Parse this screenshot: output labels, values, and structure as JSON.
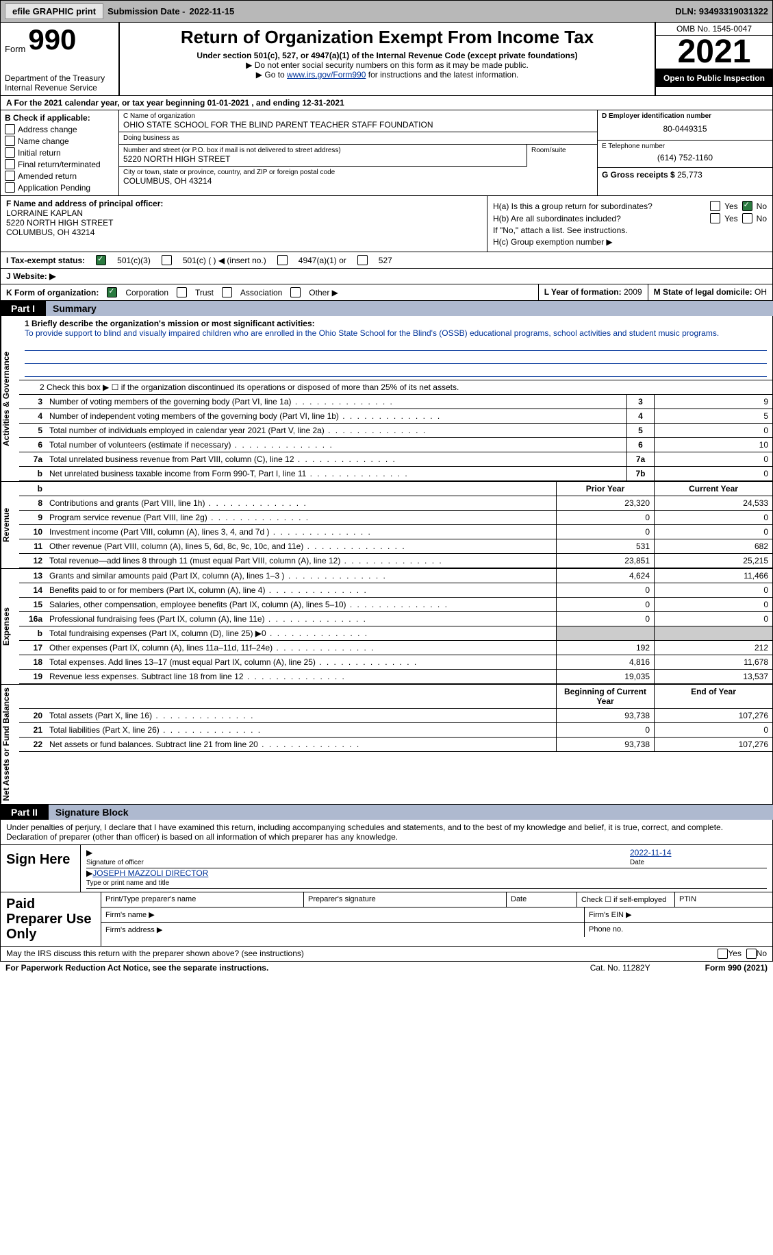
{
  "topbar": {
    "efile_btn": "efile GRAPHIC print",
    "sub_date_label": "Submission Date - ",
    "sub_date": "2022-11-15",
    "dln_label": "DLN: ",
    "dln": "93493319031322"
  },
  "header": {
    "form_word": "Form",
    "form_num": "990",
    "dept": "Department of the Treasury\nInternal Revenue Service",
    "title": "Return of Organization Exempt From Income Tax",
    "sub1": "Under section 501(c), 527, or 4947(a)(1) of the Internal Revenue Code (except private foundations)",
    "sub2": "▶ Do not enter social security numbers on this form as it may be made public.",
    "sub3_pre": "▶ Go to ",
    "sub3_link": "www.irs.gov/Form990",
    "sub3_post": " for instructions and the latest information.",
    "omb": "OMB No. 1545-0047",
    "year": "2021",
    "inspect": "Open to Public Inspection"
  },
  "sectA": "A For the 2021 calendar year, or tax year beginning 01-01-2021   , and ending 12-31-2021",
  "colB": {
    "label": "B Check if applicable:",
    "opts": [
      "Address change",
      "Name change",
      "Initial return",
      "Final return/terminated",
      "Amended return",
      "Application Pending"
    ]
  },
  "colC": {
    "name_lbl": "C Name of organization",
    "name": "OHIO STATE SCHOOL FOR THE BLIND PARENT TEACHER STAFF FOUNDATION",
    "dba_lbl": "Doing business as",
    "dba": "",
    "addr_lbl": "Number and street (or P.O. box if mail is not delivered to street address)",
    "addr": "5220 NORTH HIGH STREET",
    "room_lbl": "Room/suite",
    "city_lbl": "City or town, state or province, country, and ZIP or foreign postal code",
    "city": "COLUMBUS, OH  43214"
  },
  "colD": {
    "ein_lbl": "D Employer identification number",
    "ein": "80-0449315",
    "phone_lbl": "E Telephone number",
    "phone": "(614) 752-1160",
    "gross_lbl": "G Gross receipts $ ",
    "gross": "25,773"
  },
  "officer": {
    "lbl": "F Name and address of principal officer:",
    "name": "LORRAINE KAPLAN",
    "addr": "5220 NORTH HIGH STREET",
    "city": "COLUMBUS, OH  43214"
  },
  "hsection": {
    "ha": "H(a)  Is this a group return for subordinates?",
    "hb": "H(b)  Are all subordinates included?",
    "hb_note": "If \"No,\" attach a list. See instructions.",
    "hc": "H(c)  Group exemption number ▶"
  },
  "status": {
    "lbl": "I   Tax-exempt status:",
    "o1": "501(c)(3)",
    "o2": "501(c) (  ) ◀ (insert no.)",
    "o3": "4947(a)(1) or",
    "o4": "527"
  },
  "website": {
    "lbl": "J   Website: ▶"
  },
  "korg": {
    "lbl": "K Form of organization:",
    "corp": "Corporation",
    "trust": "Trust",
    "assoc": "Association",
    "other": "Other ▶",
    "year_lbl": "L Year of formation: ",
    "year": "2009",
    "state_lbl": "M State of legal domicile: ",
    "state": "OH"
  },
  "part1": {
    "num": "Part I",
    "title": "Summary"
  },
  "vtabs": {
    "activities": "Activities & Governance",
    "revenue": "Revenue",
    "expenses": "Expenses",
    "netassets": "Net Assets or Fund Balances"
  },
  "mission": {
    "lbl": "1   Briefly describe the organization's mission or most significant activities:",
    "text": "To provide support to blind and visually impaired children who are enrolled in the Ohio State School for the Blind's (OSSB) educational programs, school activities and student music programs."
  },
  "line2": "2   Check this box ▶ ☐  if the organization discontinued its operations or disposed of more than 25% of its net assets.",
  "rows_gov": [
    {
      "n": "3",
      "d": "Number of voting members of the governing body (Part VI, line 1a)",
      "box": "3",
      "v": "9"
    },
    {
      "n": "4",
      "d": "Number of independent voting members of the governing body (Part VI, line 1b)",
      "box": "4",
      "v": "5"
    },
    {
      "n": "5",
      "d": "Total number of individuals employed in calendar year 2021 (Part V, line 2a)",
      "box": "5",
      "v": "0"
    },
    {
      "n": "6",
      "d": "Total number of volunteers (estimate if necessary)",
      "box": "6",
      "v": "10"
    },
    {
      "n": "7a",
      "d": "Total unrelated business revenue from Part VIII, column (C), line 12",
      "box": "7a",
      "v": "0"
    },
    {
      "n": "b",
      "d": "Net unrelated business taxable income from Form 990-T, Part I, line 11",
      "box": "7b",
      "v": "0"
    }
  ],
  "hdr_rev": {
    "py": "Prior Year",
    "cy": "Current Year"
  },
  "rows_rev": [
    {
      "n": "8",
      "d": "Contributions and grants (Part VIII, line 1h)",
      "py": "23,320",
      "cy": "24,533"
    },
    {
      "n": "9",
      "d": "Program service revenue (Part VIII, line 2g)",
      "py": "0",
      "cy": "0"
    },
    {
      "n": "10",
      "d": "Investment income (Part VIII, column (A), lines 3, 4, and 7d )",
      "py": "0",
      "cy": "0"
    },
    {
      "n": "11",
      "d": "Other revenue (Part VIII, column (A), lines 5, 6d, 8c, 9c, 10c, and 11e)",
      "py": "531",
      "cy": "682"
    },
    {
      "n": "12",
      "d": "Total revenue—add lines 8 through 11 (must equal Part VIII, column (A), line 12)",
      "py": "23,851",
      "cy": "25,215"
    }
  ],
  "rows_exp": [
    {
      "n": "13",
      "d": "Grants and similar amounts paid (Part IX, column (A), lines 1–3 )",
      "py": "4,624",
      "cy": "11,466"
    },
    {
      "n": "14",
      "d": "Benefits paid to or for members (Part IX, column (A), line 4)",
      "py": "0",
      "cy": "0"
    },
    {
      "n": "15",
      "d": "Salaries, other compensation, employee benefits (Part IX, column (A), lines 5–10)",
      "py": "0",
      "cy": "0"
    },
    {
      "n": "16a",
      "d": "Professional fundraising fees (Part IX, column (A), line 11e)",
      "py": "0",
      "cy": "0"
    },
    {
      "n": "b",
      "d": "Total fundraising expenses (Part IX, column (D), line 25) ▶0",
      "py": "",
      "cy": "",
      "shaded": true
    },
    {
      "n": "17",
      "d": "Other expenses (Part IX, column (A), lines 11a–11d, 11f–24e)",
      "py": "192",
      "cy": "212"
    },
    {
      "n": "18",
      "d": "Total expenses. Add lines 13–17 (must equal Part IX, column (A), line 25)",
      "py": "4,816",
      "cy": "11,678"
    },
    {
      "n": "19",
      "d": "Revenue less expenses. Subtract line 18 from line 12",
      "py": "19,035",
      "cy": "13,537"
    }
  ],
  "hdr_na": {
    "py": "Beginning of Current Year",
    "cy": "End of Year"
  },
  "rows_na": [
    {
      "n": "20",
      "d": "Total assets (Part X, line 16)",
      "py": "93,738",
      "cy": "107,276"
    },
    {
      "n": "21",
      "d": "Total liabilities (Part X, line 26)",
      "py": "0",
      "cy": "0"
    },
    {
      "n": "22",
      "d": "Net assets or fund balances. Subtract line 21 from line 20",
      "py": "93,738",
      "cy": "107,276"
    }
  ],
  "part2": {
    "num": "Part II",
    "title": "Signature Block"
  },
  "sig": {
    "decl": "Under penalties of perjury, I declare that I have examined this return, including accompanying schedules and statements, and to the best of my knowledge and belief, it is true, correct, and complete. Declaration of preparer (other than officer) is based on all information of which preparer has any knowledge.",
    "sign_here": "Sign Here",
    "sig_officer": "Signature of officer",
    "date": "Date",
    "sig_date": "2022-11-14",
    "name": "JOSEPH MAZZOLI  DIRECTOR",
    "name_lbl": "Type or print name and title",
    "paid": "Paid Preparer Use Only",
    "p1": "Print/Type preparer's name",
    "p2": "Preparer's signature",
    "p3": "Date",
    "p4": "Check ☐ if self-employed",
    "p5": "PTIN",
    "firm_name": "Firm's name    ▶",
    "firm_ein": "Firm's EIN ▶",
    "firm_addr": "Firm's address ▶",
    "phone": "Phone no."
  },
  "footer_q": "May the IRS discuss this return with the preparer shown above? (see instructions)",
  "bottom": {
    "left": "For Paperwork Reduction Act Notice, see the separate instructions.",
    "mid": "Cat. No. 11282Y",
    "right": "Form 990 (2021)"
  }
}
